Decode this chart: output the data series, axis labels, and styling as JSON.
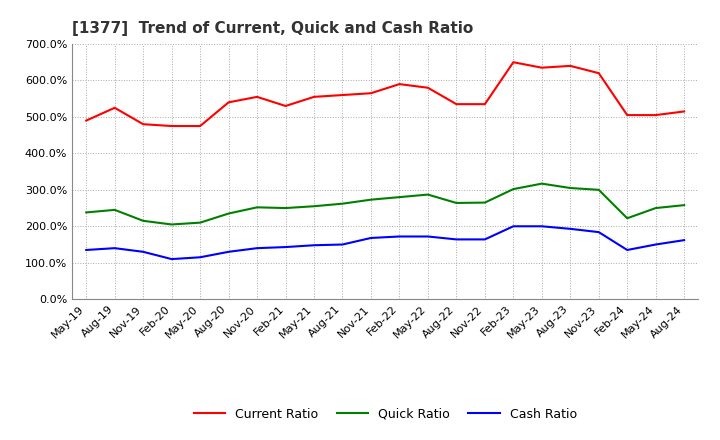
{
  "title": "[1377]  Trend of Current, Quick and Cash Ratio",
  "x_labels": [
    "May-19",
    "Aug-19",
    "Nov-19",
    "Feb-20",
    "May-20",
    "Aug-20",
    "Nov-20",
    "Feb-21",
    "May-21",
    "Aug-21",
    "Nov-21",
    "Feb-22",
    "May-22",
    "Aug-22",
    "Nov-22",
    "Feb-23",
    "May-23",
    "Aug-23",
    "Nov-23",
    "Feb-24",
    "May-24",
    "Aug-24"
  ],
  "current_ratio": [
    490,
    525,
    480,
    475,
    475,
    540,
    555,
    530,
    555,
    560,
    565,
    590,
    580,
    535,
    535,
    650,
    635,
    640,
    620,
    505,
    505,
    515
  ],
  "quick_ratio": [
    238,
    245,
    215,
    205,
    210,
    235,
    252,
    250,
    255,
    262,
    273,
    280,
    287,
    264,
    265,
    302,
    317,
    305,
    300,
    222,
    250,
    258
  ],
  "cash_ratio": [
    135,
    140,
    130,
    110,
    115,
    130,
    140,
    143,
    148,
    150,
    168,
    172,
    172,
    164,
    164,
    200,
    200,
    193,
    184,
    135,
    150,
    162
  ],
  "current_color": "#FF0000",
  "quick_color": "#008000",
  "cash_color": "#0000FF",
  "ylim": [
    0,
    700
  ],
  "yticks": [
    0,
    100,
    200,
    300,
    400,
    500,
    600,
    700
  ],
  "background_color": "#FFFFFF",
  "grid_color": "#AAAAAA",
  "legend_labels": [
    "Current Ratio",
    "Quick Ratio",
    "Cash Ratio"
  ],
  "title_fontsize": 11,
  "tick_fontsize": 8
}
